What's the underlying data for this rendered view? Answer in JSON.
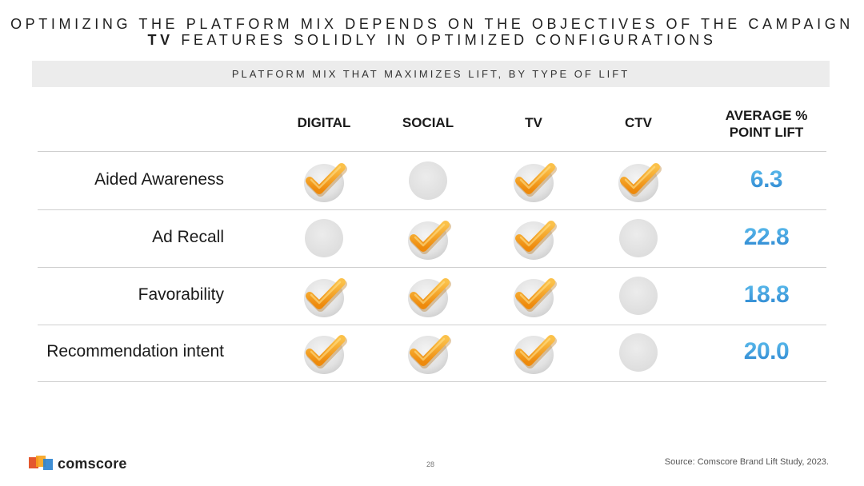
{
  "title": {
    "line1": "OPTIMIZING THE PLATFORM MIX DEPENDS ON THE OBJECTIVES OF THE CAMPAIGN",
    "line2_bold": "TV",
    "line2_rest": " FEATURES SOLIDLY IN OPTIMIZED CONFIGURATIONS"
  },
  "subtitle": "PLATFORM MIX THAT MAXIMIZES LIFT, BY TYPE OF LIFT",
  "table": {
    "columns": [
      "DIGITAL",
      "SOCIAL",
      "TV",
      "CTV"
    ],
    "lift_header_line1": "AVERAGE %",
    "lift_header_line2": "POINT LIFT",
    "rows": [
      {
        "label": "Aided Awareness",
        "checks": [
          true,
          false,
          true,
          true
        ],
        "lift": "6.3"
      },
      {
        "label": "Ad Recall",
        "checks": [
          false,
          true,
          true,
          false
        ],
        "lift": "22.8"
      },
      {
        "label": "Favorability",
        "checks": [
          true,
          true,
          true,
          false
        ],
        "lift": "18.8"
      },
      {
        "label": "Recommendation intent",
        "checks": [
          true,
          true,
          true,
          false
        ],
        "lift": "20.0"
      }
    ]
  },
  "footer": {
    "brand": "comscore",
    "page_number": "28",
    "source": "Source: Comscore Brand Lift Study, 2023."
  },
  "colors": {
    "check_orange": "#f7a21b",
    "lift_blue": "#2a82cf",
    "empty_circle": "#e3e3e3"
  },
  "icons": {
    "checked": "check-icon",
    "unchecked": "empty-circle-icon"
  }
}
